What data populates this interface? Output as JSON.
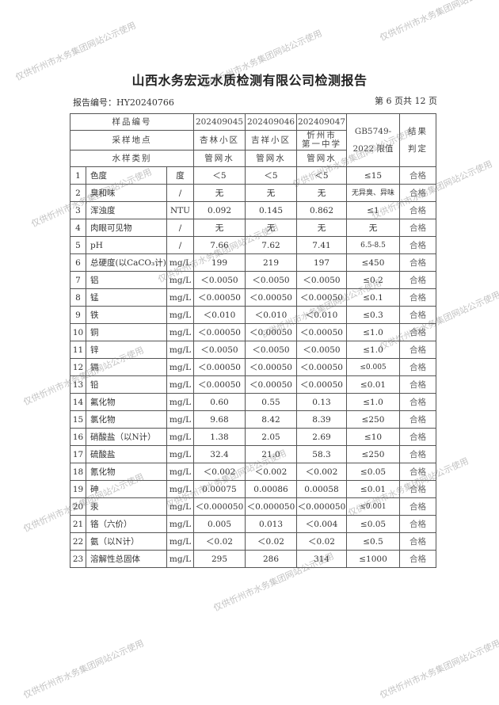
{
  "title": "山西水务宏远水质检测有限公司检测报告",
  "report_no": "报告编号：HY20240766",
  "page_info": "第 6 页共 12 页",
  "header": {
    "sample_no_label": "样品编号",
    "samples": [
      "202409045",
      "202409046",
      "202409047"
    ],
    "location_label": "采样地点",
    "locations": [
      "杏林小区",
      "吉祥小区",
      "忻州市\n第一中学"
    ],
    "type_label": "水样类别",
    "types": [
      "管网水",
      "管网水",
      "管网水"
    ],
    "limit_label": "GB5749-\n2022 限值",
    "result_label": "结果\n判定"
  },
  "rows": [
    [
      "1",
      "色度",
      "度",
      "＜5",
      "＜5",
      "＜5",
      "≤15",
      "合格"
    ],
    [
      "2",
      "臭和味",
      "/",
      "无",
      "无",
      "无",
      "无异臭、异味",
      "合格"
    ],
    [
      "3",
      "浑浊度",
      "NTU",
      "0.092",
      "0.145",
      "0.862",
      "≤1",
      "合格"
    ],
    [
      "4",
      "肉眼可见物",
      "/",
      "无",
      "无",
      "无",
      "无",
      "合格"
    ],
    [
      "5",
      "pH",
      "/",
      "7.66",
      "7.62",
      "7.41",
      "6.5-8.5",
      "合格"
    ],
    [
      "6",
      "总硬度(以CaCO₃计)",
      "mg/L",
      "199",
      "219",
      "197",
      "≤450",
      "合格"
    ],
    [
      "7",
      "铝",
      "mg/L",
      "＜0.0050",
      "＜0.0050",
      "＜0.0050",
      "≤0.2",
      "合格"
    ],
    [
      "8",
      "锰",
      "mg/L",
      "＜0.00050",
      "＜0.00050",
      "＜0.00050",
      "≤0.1",
      "合格"
    ],
    [
      "9",
      "铁",
      "mg/L",
      "＜0.010",
      "＜0.010",
      "＜0.010",
      "≤0.3",
      "合格"
    ],
    [
      "10",
      "铜",
      "mg/L",
      "＜0.00050",
      "＜0.00050",
      "＜0.00050",
      "≤1.0",
      "合格"
    ],
    [
      "11",
      "锌",
      "mg/L",
      "＜0.0050",
      "＜0.0050",
      "＜0.0050",
      "≤1.0",
      "合格"
    ],
    [
      "12",
      "镉",
      "mg/L",
      "＜0.00050",
      "＜0.00050",
      "＜0.00050",
      "≤0.005",
      "合格"
    ],
    [
      "13",
      "铅",
      "mg/L",
      "＜0.00050",
      "＜0.00050",
      "＜0.00050",
      "≤0.01",
      "合格"
    ],
    [
      "14",
      "氟化物",
      "mg/L",
      "0.60",
      "0.55",
      "0.13",
      "≤1.0",
      "合格"
    ],
    [
      "15",
      "氯化物",
      "mg/L",
      "9.68",
      "8.42",
      "8.39",
      "≤250",
      "合格"
    ],
    [
      "16",
      "硝酸盐（以N计）",
      "mg/L",
      "1.38",
      "2.05",
      "2.69",
      "≤10",
      "合格"
    ],
    [
      "17",
      "硫酸盐",
      "mg/L",
      "32.4",
      "21.0",
      "58.3",
      "≤250",
      "合格"
    ],
    [
      "18",
      "氰化物",
      "mg/L",
      "＜0.002",
      "＜0.002",
      "＜0.002",
      "≤0.05",
      "合格"
    ],
    [
      "19",
      "砷",
      "mg/L",
      "0.00075",
      "0.00086",
      "0.00058",
      "≤0.01",
      "合格"
    ],
    [
      "20",
      "汞",
      "mg/L",
      "＜0.000050",
      "＜0.000050",
      "＜0.000050",
      "≤0.001",
      "合格"
    ],
    [
      "21",
      "铬（六价）",
      "mg/L",
      "0.005",
      "0.013",
      "＜0.004",
      "≤0.05",
      "合格"
    ],
    [
      "22",
      "氨（以N计）",
      "mg/L",
      "＜0.02",
      "＜0.02",
      "＜0.02",
      "≤0.5",
      "合格"
    ],
    [
      "23",
      "溶解性总固体",
      "mg/L",
      "295",
      "286",
      "314",
      "≤1000",
      "合格"
    ]
  ],
  "watermark": "仅供忻州市水务集团网站公示使用"
}
